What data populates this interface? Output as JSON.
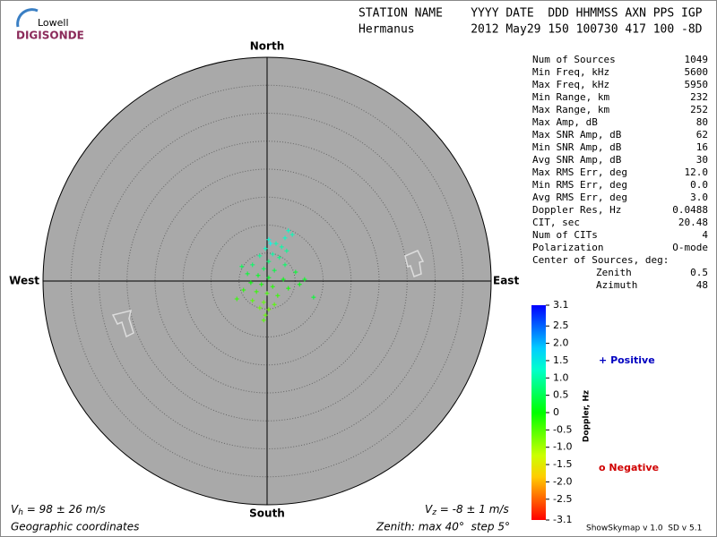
{
  "logo": {
    "top": "Lowell",
    "bottom": "DIGISONDE"
  },
  "header": {
    "line1": "STATION NAME    YYYY DATE  DDD HHMMSS AXN PPS IGP",
    "line2": "Hermanus        2012 May29 150 100730 417 100 -8D"
  },
  "stats": [
    [
      "Num of Sources",
      "1049"
    ],
    [
      "Min Freq, kHz",
      "5600"
    ],
    [
      "Max Freq, kHz",
      "5950"
    ],
    [
      "Min Range, km",
      "232"
    ],
    [
      "Max Range, km",
      "252"
    ],
    [
      "Max Amp, dB",
      "80"
    ],
    [
      "Max SNR Amp, dB",
      "62"
    ],
    [
      "Min SNR Amp, dB",
      "16"
    ],
    [
      "Avg SNR Amp, dB",
      "30"
    ],
    [
      "Max RMS Err, deg",
      "12.0"
    ],
    [
      "Min RMS Err, deg",
      "0.0"
    ],
    [
      "Avg RMS Err, deg",
      "3.0"
    ],
    [
      "Doppler Res, Hz",
      "0.0488"
    ],
    [
      "CIT, sec",
      "20.48"
    ],
    [
      "Num of CITs",
      "4"
    ],
    [
      "Polarization",
      "O-mode"
    ]
  ],
  "center": {
    "title": "Center of Sources, deg:",
    "rows": [
      [
        "Zenith",
        "0.5"
      ],
      [
        "Azimuth",
        "48"
      ]
    ]
  },
  "footer": {
    "vh": [
      "V",
      "h",
      " = 98 ± 26 m/s"
    ],
    "vz": [
      "V",
      "z",
      " = -8 ± 1 m/s"
    ],
    "coords": "Geographic coordinates",
    "zenith": "Zenith: max 40°  step 5°",
    "version": "ShowSkymap v 1.0  SD v 5.1"
  },
  "chart_data": {
    "type": "skymap",
    "directions": {
      "north": "North",
      "south": "South",
      "west": "West",
      "east": "East"
    },
    "rlim": [
      0,
      40
    ],
    "rticks": [
      5,
      10,
      15,
      20,
      25,
      30,
      35,
      40
    ],
    "series": [
      {
        "name": "Positive",
        "marker": "+",
        "color": "#0000c0",
        "x": [
          3.8,
          4.5,
          3.2,
          0.3,
          0.6,
          1.6,
          2.6,
          -0.3,
          3.5,
          1.0,
          -1.3,
          2.2,
          0.3,
          -2.6,
          3.2,
          -4.5,
          -0.6,
          1.3,
          5.1,
          -3.5,
          -1.6,
          0.3,
          2.9,
          6.7,
          -2.9,
          -1.0,
          1.0,
          3.8,
          -4.2,
          -1.9,
          0.0,
          1.9,
          8.3,
          -5.4,
          -2.6,
          -0.6,
          1.3,
          -1.3,
          0.3,
          -0.3,
          -0.6,
          5.8
        ],
        "y": [
          9.0,
          8.3,
          7.7,
          7.4,
          6.7,
          6.7,
          6.1,
          5.8,
          5.4,
          4.8,
          4.5,
          4.2,
          3.5,
          2.9,
          2.9,
          2.6,
          2.2,
          1.9,
          1.6,
          1.3,
          1.0,
          0.6,
          0.3,
          0.3,
          -0.3,
          -0.6,
          -1.0,
          -1.3,
          -1.6,
          -1.9,
          -2.2,
          -2.6,
          -2.9,
          -3.2,
          -3.5,
          -3.8,
          -4.2,
          -4.8,
          -5.1,
          -6.1,
          -7.0,
          -0.6
        ],
        "doppler": [
          1.2,
          1.1,
          1.2,
          1.3,
          1.5,
          1.1,
          1.0,
          1.2,
          0.9,
          1.0,
          0.9,
          0.8,
          0.7,
          0.6,
          0.6,
          0.5,
          0.5,
          0.4,
          0.3,
          0.3,
          0.2,
          0.2,
          0.1,
          0.2,
          0,
          -0.1,
          -0.2,
          -0.1,
          -0.2,
          -0.3,
          -0.4,
          -0.3,
          0.3,
          -0.3,
          -0.5,
          -0.6,
          -0.5,
          -0.6,
          -0.7,
          -0.6,
          -0.5,
          0.1
        ]
      },
      {
        "name": "Negative",
        "marker": "o",
        "color": "#d00000",
        "x": [],
        "y": [],
        "doppler": []
      }
    ],
    "colorbar": {
      "label": "Doppler, Hz",
      "clim": [
        -3.1,
        3.1
      ],
      "cticks": [
        3.1,
        2.5,
        {
          "value": 2,
          "label": "2.0"
        },
        1.5,
        {
          "value": 1,
          "label": "1.0"
        },
        0.5,
        0,
        -0.5,
        {
          "value": -1,
          "label": "-1.0"
        },
        -1.5,
        {
          "value": -2,
          "label": "-2.0"
        },
        -2.5,
        -3.1
      ]
    }
  }
}
